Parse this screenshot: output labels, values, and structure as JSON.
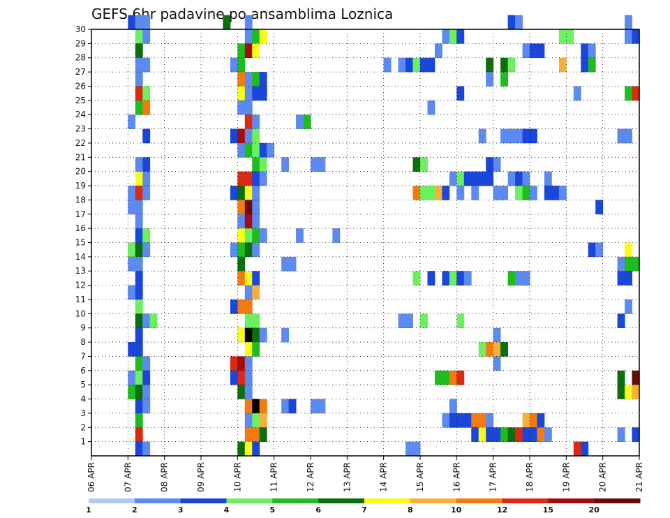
{
  "chart_data": {
    "type": "heatmap",
    "title": "GEFS 6hr padavine po ansamblima Loznica",
    "xlabel": "",
    "ylabel": "",
    "x_ticks": [
      "06 APR",
      "07 APR",
      "08 APR",
      "09 APR",
      "10 APR",
      "11 APR",
      "12 APR",
      "13 APR",
      "14 APR",
      "15 APR",
      "16 APR",
      "17 APR",
      "18 APR",
      "19 APR",
      "20 APR",
      "21 APR"
    ],
    "y_ticks": [
      "1",
      "2",
      "3",
      "4",
      "5",
      "6",
      "7",
      "8",
      "9",
      "10",
      "11",
      "12",
      "13",
      "14",
      "15",
      "16",
      "17",
      "18",
      "19",
      "20",
      "21",
      "22",
      "23",
      "24",
      "25",
      "26",
      "27",
      "28",
      "29",
      "30"
    ],
    "x_range_days": [
      0,
      15
    ],
    "y_range_members": [
      0,
      30
    ],
    "grid": true,
    "legend_placement": "bottom",
    "legend": {
      "labels": [
        "1",
        "2",
        "3",
        "4",
        "5",
        "6",
        "7",
        "8",
        "10",
        "12",
        "15",
        "20"
      ],
      "colors": [
        "#b3c8f6",
        "#5c8af0",
        "#1a47da",
        "#6cf060",
        "#1fbc1f",
        "#0c6e0c",
        "#fbfb19",
        "#f8b03a",
        "#f27b10",
        "#dc2a12",
        "#a20d0d",
        "#6b0a0a"
      ]
    },
    "cells": [
      [
        1.0,
        30,
        2
      ],
      [
        1.2,
        30,
        1
      ],
      [
        1.4,
        30,
        1
      ],
      [
        3.6,
        30,
        5
      ],
      [
        4.2,
        30,
        1
      ],
      [
        11.4,
        30,
        2
      ],
      [
        11.6,
        30,
        1
      ],
      [
        14.6,
        30,
        1
      ],
      [
        1.2,
        29,
        3
      ],
      [
        1.4,
        29,
        1
      ],
      [
        4.2,
        29,
        1
      ],
      [
        4.4,
        29,
        4
      ],
      [
        4.6,
        29,
        6
      ],
      [
        9.6,
        29,
        1
      ],
      [
        9.8,
        29,
        3
      ],
      [
        10.0,
        29,
        2
      ],
      [
        12.8,
        29,
        3
      ],
      [
        13.0,
        29,
        3
      ],
      [
        14.6,
        29,
        1
      ],
      [
        14.8,
        29,
        2
      ],
      [
        1.2,
        28,
        5
      ],
      [
        4.0,
        28,
        4
      ],
      [
        4.2,
        28,
        10
      ],
      [
        4.4,
        28,
        6
      ],
      [
        9.4,
        28,
        1
      ],
      [
        11.8,
        28,
        1
      ],
      [
        12.0,
        28,
        2
      ],
      [
        12.2,
        28,
        2
      ],
      [
        13.4,
        28,
        2
      ],
      [
        13.6,
        28,
        1
      ],
      [
        1.2,
        27,
        1
      ],
      [
        1.4,
        27,
        1
      ],
      [
        3.8,
        27,
        1
      ],
      [
        4.0,
        27,
        4
      ],
      [
        8.0,
        27,
        1
      ],
      [
        8.4,
        27,
        1
      ],
      [
        8.6,
        27,
        2
      ],
      [
        8.8,
        27,
        3
      ],
      [
        9.0,
        27,
        2
      ],
      [
        9.2,
        27,
        2
      ],
      [
        10.8,
        27,
        5
      ],
      [
        11.2,
        27,
        5
      ],
      [
        11.4,
        27,
        3
      ],
      [
        12.8,
        27,
        7
      ],
      [
        13.4,
        27,
        2
      ],
      [
        13.6,
        27,
        4
      ],
      [
        1.2,
        26,
        1
      ],
      [
        4.0,
        26,
        8
      ],
      [
        4.2,
        26,
        1
      ],
      [
        4.4,
        26,
        4
      ],
      [
        4.6,
        26,
        2
      ],
      [
        10.8,
        26,
        1
      ],
      [
        11.2,
        26,
        4
      ],
      [
        1.2,
        25,
        9
      ],
      [
        1.4,
        25,
        3
      ],
      [
        4.0,
        25,
        6
      ],
      [
        4.2,
        25,
        1
      ],
      [
        4.4,
        25,
        2
      ],
      [
        4.6,
        25,
        2
      ],
      [
        10.0,
        25,
        2
      ],
      [
        13.2,
        25,
        1
      ],
      [
        14.6,
        25,
        4
      ],
      [
        14.8,
        25,
        9
      ],
      [
        1.2,
        24,
        4
      ],
      [
        1.4,
        24,
        8
      ],
      [
        4.0,
        24,
        1
      ],
      [
        4.2,
        24,
        1
      ],
      [
        9.2,
        24,
        1
      ],
      [
        1.0,
        23,
        1
      ],
      [
        4.2,
        23,
        9
      ],
      [
        4.4,
        23,
        1
      ],
      [
        5.6,
        23,
        1
      ],
      [
        5.8,
        23,
        4
      ],
      [
        1.4,
        22,
        2
      ],
      [
        3.8,
        22,
        2
      ],
      [
        4.0,
        22,
        10
      ],
      [
        4.2,
        22,
        1
      ],
      [
        4.4,
        22,
        3
      ],
      [
        10.6,
        22,
        1
      ],
      [
        11.2,
        22,
        1
      ],
      [
        11.4,
        22,
        1
      ],
      [
        11.6,
        22,
        1
      ],
      [
        11.8,
        22,
        2
      ],
      [
        12.0,
        22,
        2
      ],
      [
        14.4,
        22,
        1
      ],
      [
        14.6,
        22,
        1
      ],
      [
        4.0,
        21,
        1
      ],
      [
        4.2,
        21,
        4
      ],
      [
        4.4,
        21,
        3
      ],
      [
        4.6,
        21,
        2
      ],
      [
        4.8,
        21,
        1
      ],
      [
        1.2,
        20,
        1
      ],
      [
        1.4,
        20,
        2
      ],
      [
        4.4,
        20,
        4
      ],
      [
        4.6,
        20,
        3
      ],
      [
        5.2,
        20,
        1
      ],
      [
        6.0,
        20,
        1
      ],
      [
        6.2,
        20,
        1
      ],
      [
        8.8,
        20,
        5
      ],
      [
        9.0,
        20,
        3
      ],
      [
        10.8,
        20,
        2
      ],
      [
        11.0,
        20,
        1
      ],
      [
        1.2,
        19,
        6
      ],
      [
        1.4,
        19,
        1
      ],
      [
        4.0,
        19,
        9
      ],
      [
        4.2,
        19,
        9
      ],
      [
        4.4,
        19,
        2
      ],
      [
        4.6,
        19,
        1
      ],
      [
        9.8,
        19,
        1
      ],
      [
        10.0,
        19,
        3
      ],
      [
        10.2,
        19,
        2
      ],
      [
        10.4,
        19,
        2
      ],
      [
        10.6,
        19,
        2
      ],
      [
        10.8,
        19,
        2
      ],
      [
        11.4,
        19,
        1
      ],
      [
        11.6,
        19,
        2
      ],
      [
        11.8,
        19,
        1
      ],
      [
        12.4,
        19,
        1
      ],
      [
        1.0,
        18,
        1
      ],
      [
        1.2,
        18,
        9
      ],
      [
        1.4,
        18,
        1
      ],
      [
        3.8,
        18,
        2
      ],
      [
        4.0,
        18,
        5
      ],
      [
        4.2,
        18,
        6
      ],
      [
        4.4,
        18,
        1
      ],
      [
        8.8,
        18,
        8
      ],
      [
        9.0,
        18,
        3
      ],
      [
        9.2,
        18,
        3
      ],
      [
        9.4,
        18,
        7
      ],
      [
        9.6,
        18,
        2
      ],
      [
        10.0,
        18,
        1
      ],
      [
        10.4,
        18,
        1
      ],
      [
        11.0,
        18,
        1
      ],
      [
        11.2,
        18,
        1
      ],
      [
        11.6,
        18,
        3
      ],
      [
        11.8,
        18,
        4
      ],
      [
        12.0,
        18,
        1
      ],
      [
        12.4,
        18,
        2
      ],
      [
        12.6,
        18,
        2
      ],
      [
        12.8,
        18,
        1
      ],
      [
        1.0,
        17,
        1
      ],
      [
        1.2,
        17,
        1
      ],
      [
        4.0,
        17,
        8
      ],
      [
        4.2,
        17,
        11
      ],
      [
        4.4,
        17,
        1
      ],
      [
        13.8,
        17,
        2
      ],
      [
        1.2,
        16,
        1
      ],
      [
        4.0,
        16,
        1
      ],
      [
        4.2,
        16,
        10
      ],
      [
        4.4,
        16,
        1
      ],
      [
        1.2,
        15,
        2
      ],
      [
        1.4,
        15,
        3
      ],
      [
        4.0,
        15,
        6
      ],
      [
        4.2,
        15,
        3
      ],
      [
        4.4,
        15,
        4
      ],
      [
        4.6,
        15,
        1
      ],
      [
        5.6,
        15,
        1
      ],
      [
        6.6,
        15,
        1
      ],
      [
        1.0,
        14,
        3
      ],
      [
        1.2,
        14,
        5
      ],
      [
        1.4,
        14,
        1
      ],
      [
        3.8,
        14,
        1
      ],
      [
        4.0,
        14,
        4
      ],
      [
        4.2,
        14,
        5
      ],
      [
        4.4,
        14,
        1
      ],
      [
        13.6,
        14,
        2
      ],
      [
        13.8,
        14,
        1
      ],
      [
        14.6,
        14,
        6
      ],
      [
        1.0,
        13,
        1
      ],
      [
        1.2,
        13,
        1
      ],
      [
        4.0,
        13,
        5
      ],
      [
        5.2,
        13,
        1
      ],
      [
        5.4,
        13,
        1
      ],
      [
        14.4,
        13,
        1
      ],
      [
        14.6,
        13,
        4
      ],
      [
        14.8,
        13,
        4
      ],
      [
        1.2,
        12,
        2
      ],
      [
        4.0,
        12,
        8
      ],
      [
        4.2,
        12,
        6
      ],
      [
        4.4,
        12,
        2
      ],
      [
        8.8,
        12,
        3
      ],
      [
        9.2,
        12,
        2
      ],
      [
        9.6,
        12,
        2
      ],
      [
        9.8,
        12,
        3
      ],
      [
        10.0,
        12,
        2
      ],
      [
        10.2,
        12,
        1
      ],
      [
        11.4,
        12,
        4
      ],
      [
        11.6,
        12,
        1
      ],
      [
        11.8,
        12,
        1
      ],
      [
        14.4,
        12,
        2
      ],
      [
        14.6,
        12,
        2
      ],
      [
        1.0,
        11,
        1
      ],
      [
        1.2,
        11,
        2
      ],
      [
        4.2,
        11,
        1
      ],
      [
        4.4,
        11,
        7
      ],
      [
        1.2,
        10,
        3
      ],
      [
        3.8,
        10,
        2
      ],
      [
        4.0,
        10,
        8
      ],
      [
        4.2,
        10,
        8
      ],
      [
        14.6,
        10,
        1
      ],
      [
        1.2,
        9,
        5
      ],
      [
        1.4,
        9,
        1
      ],
      [
        1.6,
        9,
        3
      ],
      [
        4.2,
        9,
        3
      ],
      [
        4.4,
        9,
        3
      ],
      [
        8.4,
        9,
        1
      ],
      [
        8.6,
        9,
        1
      ],
      [
        9.0,
        9,
        3
      ],
      [
        10.0,
        9,
        3
      ],
      [
        14.4,
        9,
        2
      ],
      [
        1.2,
        8,
        2
      ],
      [
        4.0,
        8,
        6
      ],
      [
        4.2,
        8,
        12
      ],
      [
        4.4,
        8,
        5
      ],
      [
        4.6,
        8,
        1
      ],
      [
        5.2,
        8,
        1
      ],
      [
        11.0,
        8,
        1
      ],
      [
        1.0,
        7,
        2
      ],
      [
        1.2,
        7,
        2
      ],
      [
        4.2,
        7,
        6
      ],
      [
        4.4,
        7,
        4
      ],
      [
        10.6,
        7,
        3
      ],
      [
        10.8,
        7,
        8
      ],
      [
        11.0,
        7,
        7
      ],
      [
        11.2,
        7,
        5
      ],
      [
        1.2,
        6,
        4
      ],
      [
        1.4,
        6,
        1
      ],
      [
        3.8,
        6,
        9
      ],
      [
        4.0,
        6,
        10
      ],
      [
        4.2,
        6,
        1
      ],
      [
        11.0,
        6,
        1
      ],
      [
        1.0,
        5,
        1
      ],
      [
        1.2,
        5,
        3
      ],
      [
        1.4,
        5,
        2
      ],
      [
        3.8,
        5,
        2
      ],
      [
        4.0,
        5,
        9
      ],
      [
        4.2,
        5,
        1
      ],
      [
        9.4,
        5,
        4
      ],
      [
        9.6,
        5,
        4
      ],
      [
        9.8,
        5,
        8
      ],
      [
        10.0,
        5,
        9
      ],
      [
        14.4,
        5,
        5
      ],
      [
        14.8,
        5,
        11
      ],
      [
        1.0,
        4,
        4
      ],
      [
        1.2,
        4,
        5
      ],
      [
        1.4,
        4,
        1
      ],
      [
        4.0,
        4,
        5
      ],
      [
        4.2,
        4,
        1
      ],
      [
        14.4,
        4,
        5
      ],
      [
        14.6,
        4,
        6
      ],
      [
        14.8,
        4,
        7
      ],
      [
        1.2,
        3,
        2
      ],
      [
        1.4,
        3,
        1
      ],
      [
        4.2,
        3,
        8
      ],
      [
        4.4,
        3,
        12
      ],
      [
        4.6,
        3,
        8
      ],
      [
        5.2,
        3,
        1
      ],
      [
        5.4,
        3,
        2
      ],
      [
        6.0,
        3,
        1
      ],
      [
        6.2,
        3,
        1
      ],
      [
        9.8,
        3,
        1
      ],
      [
        1.2,
        2,
        4
      ],
      [
        4.2,
        2,
        1
      ],
      [
        4.4,
        2,
        3
      ],
      [
        4.6,
        2,
        7
      ],
      [
        9.6,
        2,
        1
      ],
      [
        9.8,
        2,
        2
      ],
      [
        10.0,
        2,
        2
      ],
      [
        10.2,
        2,
        2
      ],
      [
        10.4,
        2,
        8
      ],
      [
        10.6,
        2,
        8
      ],
      [
        10.8,
        2,
        1
      ],
      [
        11.8,
        2,
        7
      ],
      [
        12.0,
        2,
        8
      ],
      [
        12.2,
        2,
        2
      ],
      [
        1.2,
        1,
        9
      ],
      [
        4.2,
        1,
        8
      ],
      [
        4.4,
        1,
        8
      ],
      [
        4.6,
        1,
        5
      ],
      [
        10.4,
        1,
        2
      ],
      [
        10.6,
        1,
        6
      ],
      [
        10.8,
        1,
        2
      ],
      [
        11.0,
        1,
        2
      ],
      [
        11.2,
        1,
        4
      ],
      [
        11.4,
        1,
        5
      ],
      [
        11.6,
        1,
        9
      ],
      [
        11.8,
        1,
        2
      ],
      [
        12.0,
        1,
        2
      ],
      [
        12.2,
        1,
        8
      ],
      [
        12.4,
        1,
        1
      ],
      [
        14.4,
        1,
        1
      ],
      [
        14.8,
        1,
        2
      ],
      [
        1.2,
        0,
        2
      ],
      [
        1.4,
        0,
        1
      ],
      [
        4.0,
        0,
        5
      ],
      [
        4.2,
        0,
        6
      ],
      [
        4.4,
        0,
        2
      ],
      [
        8.6,
        0,
        1
      ],
      [
        8.8,
        0,
        1
      ],
      [
        13.2,
        0,
        9
      ],
      [
        13.4,
        0,
        2
      ]
    ]
  }
}
